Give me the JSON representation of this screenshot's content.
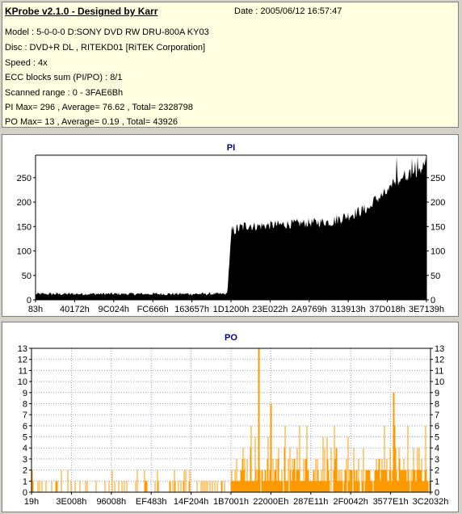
{
  "info": {
    "title": "KProbe v2.1.0 - Designed by Karr",
    "date": "Date : 2005/06/12 16:57:47",
    "lines": [
      "Model : 5-0-0-0 D:SONY    DVD RW DRU-800A  KY03",
      "Disc : DVD+R DL , RITEKD01 [RiTEK Corporation]",
      "Speed : 4x",
      "ECC blocks sum (PI/PO) : 8/1",
      "Scanned range : 0 - 3FAE6Bh",
      "PI Max= 296 , Average= 76.62 , Total= 2328798",
      "PO Max= 13 , Average= 0.19 , Total= 43926"
    ]
  },
  "colors": {
    "pi": "#000000",
    "po": "#ff9900",
    "title": "#000080",
    "info_bg": "#ffffe1"
  },
  "chart_data": [
    {
      "type": "bar",
      "title": "PI",
      "ylim": [
        0,
        296
      ],
      "yticks": [
        0,
        50,
        100,
        150,
        200,
        250
      ],
      "xticks": [
        "83h",
        "40172h",
        "9C024h",
        "FC666h",
        "163657h",
        "1D1200h",
        "23E022h",
        "2A9769h",
        "313913h",
        "37D018h",
        "3E7139h"
      ],
      "grid": false,
      "segments": [
        {
          "x": [
            0.0,
            0.49
          ],
          "y": [
            12,
            12
          ],
          "noise": 3
        },
        {
          "x": [
            0.49,
            0.5
          ],
          "y": [
            10,
            125
          ],
          "noise": 5
        },
        {
          "x": [
            0.5,
            0.55
          ],
          "y": [
            140,
            155
          ],
          "noise": 12
        },
        {
          "x": [
            0.55,
            0.75
          ],
          "y": [
            150,
            160
          ],
          "noise": 10
        },
        {
          "x": [
            0.75,
            0.86
          ],
          "y": [
            158,
            190
          ],
          "noise": 12
        },
        {
          "x": [
            0.86,
            0.91
          ],
          "y": [
            200,
            225
          ],
          "noise": 12
        },
        {
          "x": [
            0.91,
            1.0
          ],
          "y": [
            240,
            275
          ],
          "noise": 14
        }
      ],
      "max": 296
    },
    {
      "type": "bar",
      "title": "PO",
      "ylim": [
        0,
        13
      ],
      "yticks": [
        0,
        1,
        2,
        3,
        4,
        5,
        6,
        7,
        8,
        9,
        10,
        11,
        12,
        13
      ],
      "xticks": [
        "19h",
        "3E008h",
        "96008h",
        "EF483h",
        "14F204h",
        "1B7001h",
        "22000Eh",
        "287E11h",
        "2F0042h",
        "3577E1h",
        "3C2032h"
      ],
      "grid": true,
      "max": 13
    }
  ]
}
